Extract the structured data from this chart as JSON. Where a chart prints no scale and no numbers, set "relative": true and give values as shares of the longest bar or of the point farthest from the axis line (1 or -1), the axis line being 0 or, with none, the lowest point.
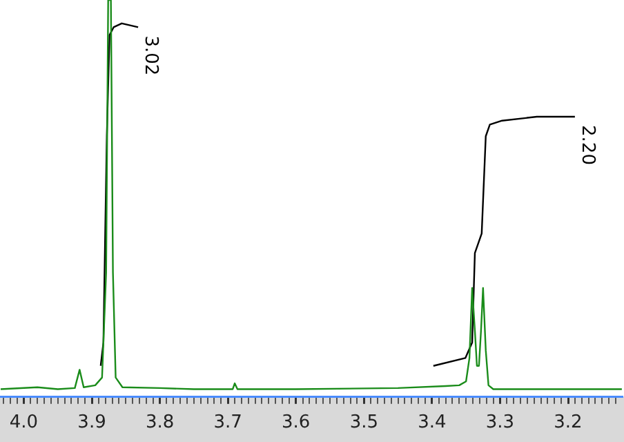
{
  "chart_data": {
    "type": "line",
    "relative": true,
    "marker": "none",
    "legend": false,
    "xlim": [
      4.035,
      3.12
    ],
    "xticks": [
      {
        "value": 4,
        "label": "4.0"
      },
      {
        "value": 3.9,
        "label": "3.9"
      },
      {
        "value": 3.8,
        "label": "3.8"
      },
      {
        "value": 3.7,
        "label": "3.7"
      },
      {
        "value": 3.6,
        "label": "3.6"
      },
      {
        "value": 3.5,
        "label": "3.5"
      },
      {
        "value": 3.4,
        "label": "3.4"
      },
      {
        "value": 3.3,
        "label": "3.3"
      },
      {
        "value": 3.2,
        "label": "3.2"
      },
      {
        "value": 4.03,
        "label": null
      },
      {
        "value": 4.02,
        "label": null
      },
      {
        "value": 4.01,
        "label": null
      },
      {
        "value": 3.99,
        "label": null
      },
      {
        "value": 3.98,
        "label": null
      },
      {
        "value": 3.97,
        "label": null
      },
      {
        "value": 3.96,
        "label": null
      },
      {
        "value": 3.95,
        "label": null
      },
      {
        "value": 3.94,
        "label": null
      },
      {
        "value": 3.93,
        "label": null
      },
      {
        "value": 3.92,
        "label": null
      },
      {
        "value": 3.91,
        "label": null
      },
      {
        "value": 3.89,
        "label": null
      },
      {
        "value": 3.88,
        "label": null
      },
      {
        "value": 3.87,
        "label": null
      },
      {
        "value": 3.86,
        "label": null
      },
      {
        "value": 3.85,
        "label": null
      },
      {
        "value": 3.84,
        "label": null
      },
      {
        "value": 3.83,
        "label": null
      },
      {
        "value": 3.82,
        "label": null
      },
      {
        "value": 3.81,
        "label": null
      },
      {
        "value": 3.79,
        "label": null
      },
      {
        "value": 3.78,
        "label": null
      },
      {
        "value": 3.77,
        "label": null
      },
      {
        "value": 3.76,
        "label": null
      },
      {
        "value": 3.75,
        "label": null
      },
      {
        "value": 3.74,
        "label": null
      },
      {
        "value": 3.73,
        "label": null
      },
      {
        "value": 3.72,
        "label": null
      },
      {
        "value": 3.71,
        "label": null
      },
      {
        "value": 3.69,
        "label": null
      },
      {
        "value": 3.68,
        "label": null
      },
      {
        "value": 3.67,
        "label": null
      },
      {
        "value": 3.66,
        "label": null
      },
      {
        "value": 3.65,
        "label": null
      },
      {
        "value": 3.64,
        "label": null
      },
      {
        "value": 3.63,
        "label": null
      },
      {
        "value": 3.62,
        "label": null
      },
      {
        "value": 3.61,
        "label": null
      },
      {
        "value": 3.59,
        "label": null
      },
      {
        "value": 3.58,
        "label": null
      },
      {
        "value": 3.57,
        "label": null
      },
      {
        "value": 3.56,
        "label": null
      },
      {
        "value": 3.55,
        "label": null
      },
      {
        "value": 3.54,
        "label": null
      },
      {
        "value": 3.53,
        "label": null
      },
      {
        "value": 3.52,
        "label": null
      },
      {
        "value": 3.51,
        "label": null
      },
      {
        "value": 3.49,
        "label": null
      },
      {
        "value": 3.48,
        "label": null
      },
      {
        "value": 3.47,
        "label": null
      },
      {
        "value": 3.46,
        "label": null
      },
      {
        "value": 3.45,
        "label": null
      },
      {
        "value": 3.44,
        "label": null
      },
      {
        "value": 3.43,
        "label": null
      },
      {
        "value": 3.42,
        "label": null
      },
      {
        "value": 3.41,
        "label": null
      },
      {
        "value": 3.39,
        "label": null
      },
      {
        "value": 3.38,
        "label": null
      },
      {
        "value": 3.37,
        "label": null
      },
      {
        "value": 3.36,
        "label": null
      },
      {
        "value": 3.35,
        "label": null
      },
      {
        "value": 3.34,
        "label": null
      },
      {
        "value": 3.33,
        "label": null
      },
      {
        "value": 3.32,
        "label": null
      },
      {
        "value": 3.31,
        "label": null
      },
      {
        "value": 3.29,
        "label": null
      },
      {
        "value": 3.28,
        "label": null
      },
      {
        "value": 3.27,
        "label": null
      },
      {
        "value": 3.26,
        "label": null
      },
      {
        "value": 3.25,
        "label": null
      },
      {
        "value": 3.24,
        "label": null
      },
      {
        "value": 3.23,
        "label": null
      },
      {
        "value": 3.22,
        "label": null
      },
      {
        "value": 3.21,
        "label": null
      },
      {
        "value": 3.19,
        "label": null
      },
      {
        "value": 3.18,
        "label": null
      },
      {
        "value": 3.17,
        "label": null
      },
      {
        "value": 3.16,
        "label": null
      },
      {
        "value": 3.15,
        "label": null
      },
      {
        "value": 3.14,
        "label": null
      },
      {
        "value": 3.13,
        "label": null
      }
    ],
    "series": [
      {
        "color": "#1a8c1a",
        "x": [
          4.034,
          3.98,
          3.95,
          3.925,
          3.918,
          3.912,
          3.895,
          3.885,
          3.879,
          3.876,
          3.872,
          3.869,
          3.865,
          3.855,
          3.8,
          3.75,
          3.693,
          3.69,
          3.686,
          3.6,
          3.45,
          3.38,
          3.36,
          3.35,
          3.345,
          3.341,
          3.337,
          3.334,
          3.331,
          3.328,
          3.325,
          3.321,
          3.317,
          3.31,
          3.2,
          3.121
        ],
        "values": [
          0,
          0.005,
          0,
          0.003,
          0.05,
          0.005,
          0.01,
          0.03,
          0.3,
          1,
          1,
          0.3,
          0.03,
          0.005,
          0.003,
          0,
          0,
          0.015,
          0,
          0,
          0.003,
          0.008,
          0.01,
          0.02,
          0.08,
          0.26,
          0.15,
          0.06,
          0.06,
          0.15,
          0.26,
          0.1,
          0.01,
          0,
          0,
          0
        ]
      },
      {
        "color": "#000000",
        "x": [
          3.887,
          3.883,
          3.878,
          3.874,
          3.868,
          3.856,
          3.832
        ],
        "values": [
          0.06,
          0.12,
          0.65,
          0.91,
          0.93,
          0.94,
          0.93
        ]
      },
      {
        "color": "#000000",
        "x": [
          3.398,
          3.351,
          3.341,
          3.337,
          3.327,
          3.321,
          3.315,
          3.297,
          3.246,
          3.19
        ],
        "values": [
          0.06,
          0.08,
          0.12,
          0.35,
          0.4,
          0.65,
          0.68,
          0.69,
          0.7,
          0.7
        ]
      }
    ],
    "annotations": [
      "3.02",
      "2.20"
    ]
  }
}
